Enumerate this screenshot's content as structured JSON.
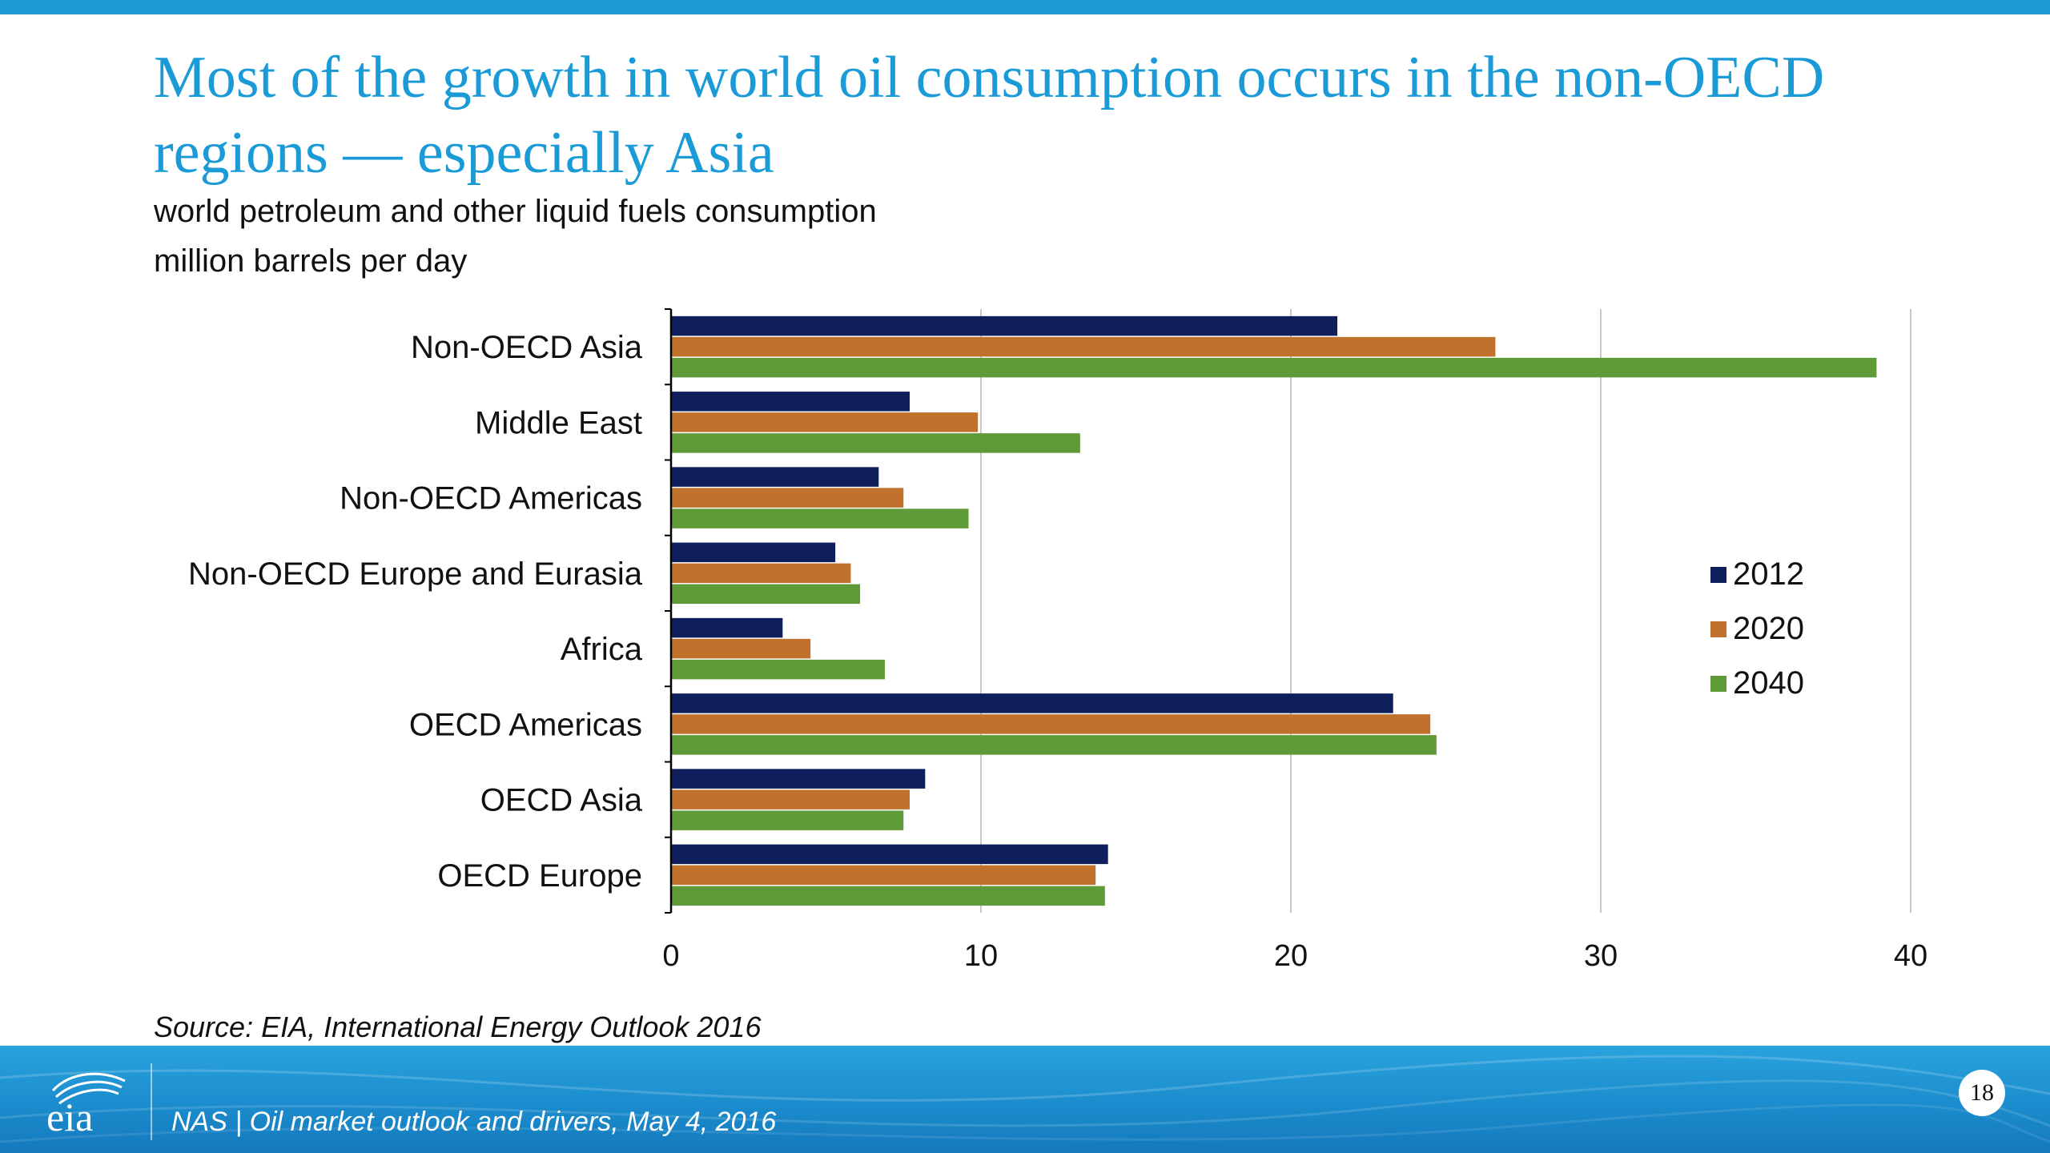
{
  "slide": {
    "title": "Most of the growth in world oil consumption occurs in the non-OECD regions — especially Asia",
    "subtitle": "world petroleum and other liquid fuels consumption",
    "units": "million barrels per day",
    "source": "Source:  EIA, International Energy Outlook 2016",
    "footer_text": "NAS | Oil market outlook and drivers, May 4, 2016",
    "page_number": "18",
    "logo_text": "eia"
  },
  "colors": {
    "accent": "#1a9bd7",
    "bar_2012": "#0f1f5c",
    "bar_2020": "#c0712b",
    "bar_2040": "#5e9a37",
    "gridline": "#c8c8c8"
  },
  "chart_data": {
    "type": "bar",
    "orientation": "horizontal",
    "categories": [
      "Non-OECD Asia",
      "Middle East",
      "Non-OECD Americas",
      "Non-OECD Europe and Eurasia",
      "Africa",
      "OECD Americas",
      "OECD Asia",
      "OECD Europe"
    ],
    "series": [
      {
        "name": "2012",
        "values": [
          21.5,
          7.7,
          6.7,
          5.3,
          3.6,
          23.3,
          8.2,
          14.1
        ]
      },
      {
        "name": "2020",
        "values": [
          26.6,
          9.9,
          7.5,
          5.8,
          4.5,
          24.5,
          7.7,
          13.7
        ]
      },
      {
        "name": "2040",
        "values": [
          38.9,
          13.2,
          9.6,
          6.1,
          6.9,
          24.7,
          7.5,
          14.0
        ]
      }
    ],
    "xlim": [
      0,
      40
    ],
    "xticks": [
      0,
      10,
      20,
      30,
      40
    ],
    "xlabel": "",
    "ylabel": "",
    "grid": true,
    "legend": "right"
  }
}
